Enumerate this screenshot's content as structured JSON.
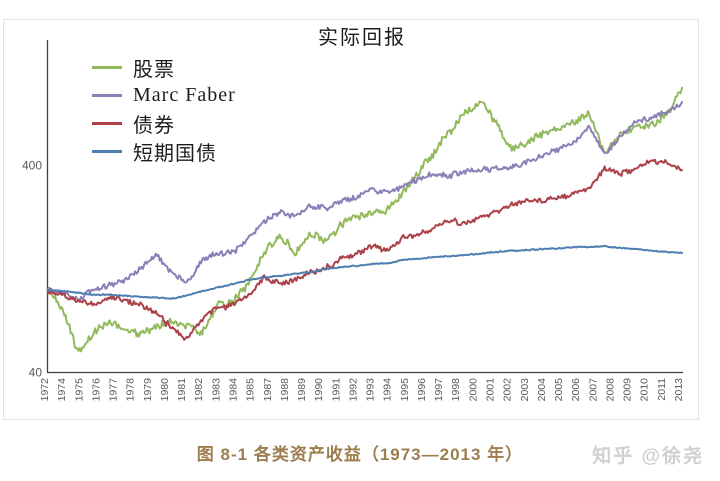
{
  "page": {
    "title": "实际回报",
    "caption": "图 8-1 各类资产收益（1973—2013 年）",
    "watermark": "知乎 @徐尧"
  },
  "ui_colors": {
    "axis": "#3f3f3f",
    "tick_label": "#595959",
    "frame_border": "#e3e3e3",
    "caption_text": "#9d7d4e",
    "watermark_text": "#d0d0d0"
  },
  "chart_data": {
    "type": "line",
    "title": "实际回报",
    "xlabel": "",
    "ylabel": "",
    "y_scale": "log",
    "y_ticks": [
      400,
      40
    ],
    "ylim": [
      40,
      1600
    ],
    "grid": false,
    "legend_position": "top-left",
    "x_start_year": 1972,
    "x_end_year": 2013,
    "x_tick_labels": [
      "1972",
      "1974",
      "1975",
      "1976",
      "1977",
      "1978",
      "1979",
      "1980",
      "1981",
      "1982",
      "1983",
      "1984",
      "1985",
      "1987",
      "1988",
      "1989",
      "1990",
      "1991",
      "1992",
      "1993",
      "1994",
      "1995",
      "1996",
      "1997",
      "1998",
      "2000",
      "2001",
      "2002",
      "2003",
      "2004",
      "2005",
      "2006",
      "2007",
      "2008",
      "2009",
      "2010",
      "2011",
      "2013"
    ],
    "series": [
      {
        "name": "股票",
        "key": "stocks",
        "color": "#92b95c",
        "values": [
          100,
          80,
          50,
          62,
          70,
          64,
          62,
          66,
          72,
          66,
          63,
          85,
          88,
          110,
          150,
          185,
          150,
          190,
          170,
          210,
          225,
          240,
          245,
          300,
          370,
          470,
          580,
          720,
          815,
          640,
          480,
          520,
          570,
          590,
          650,
          720,
          455,
          560,
          630,
          620,
          700,
          950
        ]
      },
      {
        "name": "Marc Faber",
        "key": "faber",
        "color": "#8c7fb8",
        "values": [
          100,
          97,
          90,
          100,
          106,
          112,
          126,
          148,
          122,
          108,
          140,
          152,
          152,
          178,
          215,
          235,
          230,
          255,
          250,
          270,
          282,
          305,
          295,
          320,
          345,
          365,
          355,
          375,
          380,
          385,
          392,
          420,
          450,
          480,
          520,
          620,
          450,
          560,
          640,
          680,
          720,
          810
        ]
      },
      {
        "name": "债券",
        "key": "bonds",
        "color": "#ac4149",
        "values": [
          100,
          95,
          88,
          86,
          92,
          90,
          85,
          78,
          66,
          58,
          72,
          82,
          84,
          95,
          115,
          108,
          112,
          122,
          128,
          142,
          150,
          165,
          155,
          180,
          185,
          200,
          220,
          210,
          225,
          240,
          260,
          270,
          275,
          280,
          295,
          310,
          390,
          365,
          385,
          420,
          415,
          380
        ]
      },
      {
        "name": "短期国债",
        "key": "tbills",
        "color": "#4e7fb0",
        "values": [
          100,
          99,
          97,
          95,
          95,
          94,
          93,
          92,
          91,
          94,
          99,
          103,
          107,
          112,
          115,
          117,
          120,
          122,
          127,
          129,
          131,
          134,
          135,
          140,
          142,
          144,
          146,
          148,
          150,
          153,
          155,
          156,
          158,
          159,
          161,
          162,
          163,
          160,
          158,
          155,
          153,
          151
        ]
      }
    ]
  }
}
